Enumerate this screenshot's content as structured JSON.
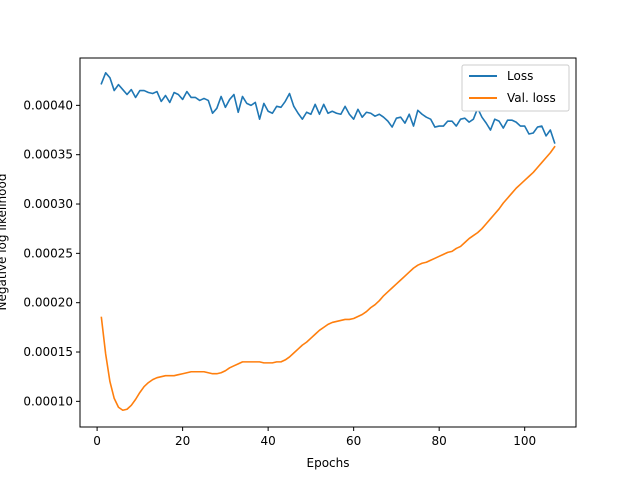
{
  "chart_data": {
    "type": "line",
    "title": "",
    "xlabel": "Epochs",
    "ylabel": "Negative log likelihood",
    "xlim": [
      -4,
      112
    ],
    "ylim": [
      7.4e-05,
      0.000448
    ],
    "xticks": [
      0,
      20,
      40,
      60,
      80,
      100
    ],
    "xtick_labels": [
      "0",
      "20",
      "40",
      "60",
      "80",
      "100"
    ],
    "yticks": [
      0.0001,
      0.00015,
      0.0002,
      0.00025,
      0.0003,
      0.00035,
      0.0004
    ],
    "ytick_labels": [
      "0.00010",
      "0.00015",
      "0.00020",
      "0.00025",
      "0.00030",
      "0.00035",
      "0.00040"
    ],
    "grid": false,
    "legend_position": "top-right",
    "series": [
      {
        "name": "Loss",
        "color": "#1f77b4",
        "points": [
          [
            1,
            0.000422
          ],
          [
            2,
            0.000433
          ],
          [
            3,
            0.000428
          ],
          [
            4,
            0.000415
          ],
          [
            5,
            0.000421
          ],
          [
            6,
            0.000416
          ],
          [
            7,
            0.000411
          ],
          [
            8,
            0.000416
          ],
          [
            9,
            0.000408
          ],
          [
            10,
            0.000415
          ],
          [
            11,
            0.000415
          ],
          [
            12,
            0.000413
          ],
          [
            13,
            0.000412
          ],
          [
            14,
            0.000414
          ],
          [
            15,
            0.000404
          ],
          [
            16,
            0.00041
          ],
          [
            17,
            0.000403
          ],
          [
            18,
            0.000413
          ],
          [
            19,
            0.000411
          ],
          [
            20,
            0.000406
          ],
          [
            21,
            0.000414
          ],
          [
            22,
            0.000408
          ],
          [
            23,
            0.000408
          ],
          [
            24,
            0.000405
          ],
          [
            25,
            0.000407
          ],
          [
            26,
            0.000405
          ],
          [
            27,
            0.000392
          ],
          [
            28,
            0.000397
          ],
          [
            29,
            0.000409
          ],
          [
            30,
            0.000398
          ],
          [
            31,
            0.000406
          ],
          [
            32,
            0.000411
          ],
          [
            33,
            0.000393
          ],
          [
            34,
            0.000409
          ],
          [
            35,
            0.000402
          ],
          [
            36,
            0.0004
          ],
          [
            37,
            0.000403
          ],
          [
            38,
            0.000386
          ],
          [
            39,
            0.000402
          ],
          [
            40,
            0.000394
          ],
          [
            41,
            0.000392
          ],
          [
            42,
            0.000399
          ],
          [
            43,
            0.000398
          ],
          [
            44,
            0.000404
          ],
          [
            45,
            0.000412
          ],
          [
            46,
            0.000399
          ],
          [
            47,
            0.000392
          ],
          [
            48,
            0.000386
          ],
          [
            49,
            0.000393
          ],
          [
            50,
            0.000391
          ],
          [
            51,
            0.000401
          ],
          [
            52,
            0.000391
          ],
          [
            53,
            0.000401
          ],
          [
            54,
            0.000392
          ],
          [
            55,
            0.000394
          ],
          [
            56,
            0.000392
          ],
          [
            57,
            0.000391
          ],
          [
            58,
            0.000399
          ],
          [
            59,
            0.000391
          ],
          [
            60,
            0.000386
          ],
          [
            61,
            0.000396
          ],
          [
            62,
            0.000388
          ],
          [
            63,
            0.000393
          ],
          [
            64,
            0.000392
          ],
          [
            65,
            0.000389
          ],
          [
            66,
            0.000391
          ],
          [
            67,
            0.000388
          ],
          [
            68,
            0.000384
          ],
          [
            69,
            0.000378
          ],
          [
            70,
            0.000387
          ],
          [
            71,
            0.000388
          ],
          [
            72,
            0.000382
          ],
          [
            73,
            0.000391
          ],
          [
            74,
            0.000379
          ],
          [
            75,
            0.000395
          ],
          [
            76,
            0.000391
          ],
          [
            77,
            0.000388
          ],
          [
            78,
            0.000386
          ],
          [
            79,
            0.000378
          ],
          [
            80,
            0.000379
          ],
          [
            81,
            0.000379
          ],
          [
            82,
            0.000384
          ],
          [
            83,
            0.000384
          ],
          [
            84,
            0.000379
          ],
          [
            85,
            0.000386
          ],
          [
            86,
            0.000387
          ],
          [
            87,
            0.000383
          ],
          [
            88,
            0.000386
          ],
          [
            89,
            0.000397
          ],
          [
            90,
            0.000388
          ],
          [
            91,
            0.000382
          ],
          [
            92,
            0.000375
          ],
          [
            93,
            0.000386
          ],
          [
            94,
            0.000384
          ],
          [
            95,
            0.000377
          ],
          [
            96,
            0.000385
          ],
          [
            97,
            0.000385
          ],
          [
            98,
            0.000383
          ],
          [
            99,
            0.000379
          ],
          [
            100,
            0.000379
          ],
          [
            101,
            0.000371
          ],
          [
            102,
            0.000372
          ],
          [
            103,
            0.000378
          ],
          [
            104,
            0.000379
          ],
          [
            105,
            0.000369
          ],
          [
            106,
            0.000375
          ],
          [
            107,
            0.000362
          ]
        ]
      },
      {
        "name": "Val. loss",
        "color": "#ff7f0e",
        "points": [
          [
            1,
            0.000185
          ],
          [
            2,
            0.000148
          ],
          [
            3,
            0.00012
          ],
          [
            4,
            0.000103
          ],
          [
            5,
            9.4e-05
          ],
          [
            6,
            9.1e-05
          ],
          [
            7,
            9.2e-05
          ],
          [
            8,
            9.6e-05
          ],
          [
            9,
            0.000102
          ],
          [
            10,
            0.000109
          ],
          [
            11,
            0.000115
          ],
          [
            12,
            0.000119
          ],
          [
            13,
            0.000122
          ],
          [
            14,
            0.000124
          ],
          [
            15,
            0.000125
          ],
          [
            16,
            0.000126
          ],
          [
            17,
            0.000126
          ],
          [
            18,
            0.000126
          ],
          [
            19,
            0.000127
          ],
          [
            20,
            0.000128
          ],
          [
            21,
            0.000129
          ],
          [
            22,
            0.00013
          ],
          [
            23,
            0.00013
          ],
          [
            24,
            0.00013
          ],
          [
            25,
            0.00013
          ],
          [
            26,
            0.000129
          ],
          [
            27,
            0.000128
          ],
          [
            28,
            0.000128
          ],
          [
            29,
            0.000129
          ],
          [
            30,
            0.000131
          ],
          [
            31,
            0.000134
          ],
          [
            32,
            0.000136
          ],
          [
            33,
            0.000138
          ],
          [
            34,
            0.00014
          ],
          [
            35,
            0.00014
          ],
          [
            36,
            0.00014
          ],
          [
            37,
            0.00014
          ],
          [
            38,
            0.00014
          ],
          [
            39,
            0.000139
          ],
          [
            40,
            0.000139
          ],
          [
            41,
            0.000139
          ],
          [
            42,
            0.00014
          ],
          [
            43,
            0.00014
          ],
          [
            44,
            0.000142
          ],
          [
            45,
            0.000145
          ],
          [
            46,
            0.000149
          ],
          [
            47,
            0.000153
          ],
          [
            48,
            0.000157
          ],
          [
            49,
            0.00016
          ],
          [
            50,
            0.000164
          ],
          [
            51,
            0.000168
          ],
          [
            52,
            0.000172
          ],
          [
            53,
            0.000175
          ],
          [
            54,
            0.000178
          ],
          [
            55,
            0.00018
          ],
          [
            56,
            0.000181
          ],
          [
            57,
            0.000182
          ],
          [
            58,
            0.000183
          ],
          [
            59,
            0.000183
          ],
          [
            60,
            0.000184
          ],
          [
            61,
            0.000186
          ],
          [
            62,
            0.000188
          ],
          [
            63,
            0.000191
          ],
          [
            64,
            0.000195
          ],
          [
            65,
            0.000198
          ],
          [
            66,
            0.000202
          ],
          [
            67,
            0.000207
          ],
          [
            68,
            0.000211
          ],
          [
            69,
            0.000215
          ],
          [
            70,
            0.000219
          ],
          [
            71,
            0.000223
          ],
          [
            72,
            0.000227
          ],
          [
            73,
            0.000231
          ],
          [
            74,
            0.000235
          ],
          [
            75,
            0.000238
          ],
          [
            76,
            0.00024
          ],
          [
            77,
            0.000241
          ],
          [
            78,
            0.000243
          ],
          [
            79,
            0.000245
          ],
          [
            80,
            0.000247
          ],
          [
            81,
            0.000249
          ],
          [
            82,
            0.000251
          ],
          [
            83,
            0.000252
          ],
          [
            84,
            0.000255
          ],
          [
            85,
            0.000257
          ],
          [
            86,
            0.000261
          ],
          [
            87,
            0.000265
          ],
          [
            88,
            0.000268
          ],
          [
            89,
            0.000271
          ],
          [
            90,
            0.000275
          ],
          [
            91,
            0.00028
          ],
          [
            92,
            0.000285
          ],
          [
            93,
            0.00029
          ],
          [
            94,
            0.000295
          ],
          [
            95,
            0.000301
          ],
          [
            96,
            0.000306
          ],
          [
            97,
            0.000311
          ],
          [
            98,
            0.000316
          ],
          [
            99,
            0.00032
          ],
          [
            100,
            0.000324
          ],
          [
            101,
            0.000328
          ],
          [
            102,
            0.000332
          ],
          [
            103,
            0.000337
          ],
          [
            104,
            0.000342
          ],
          [
            105,
            0.000347
          ],
          [
            106,
            0.000352
          ],
          [
            107,
            0.000358
          ]
        ]
      }
    ]
  }
}
